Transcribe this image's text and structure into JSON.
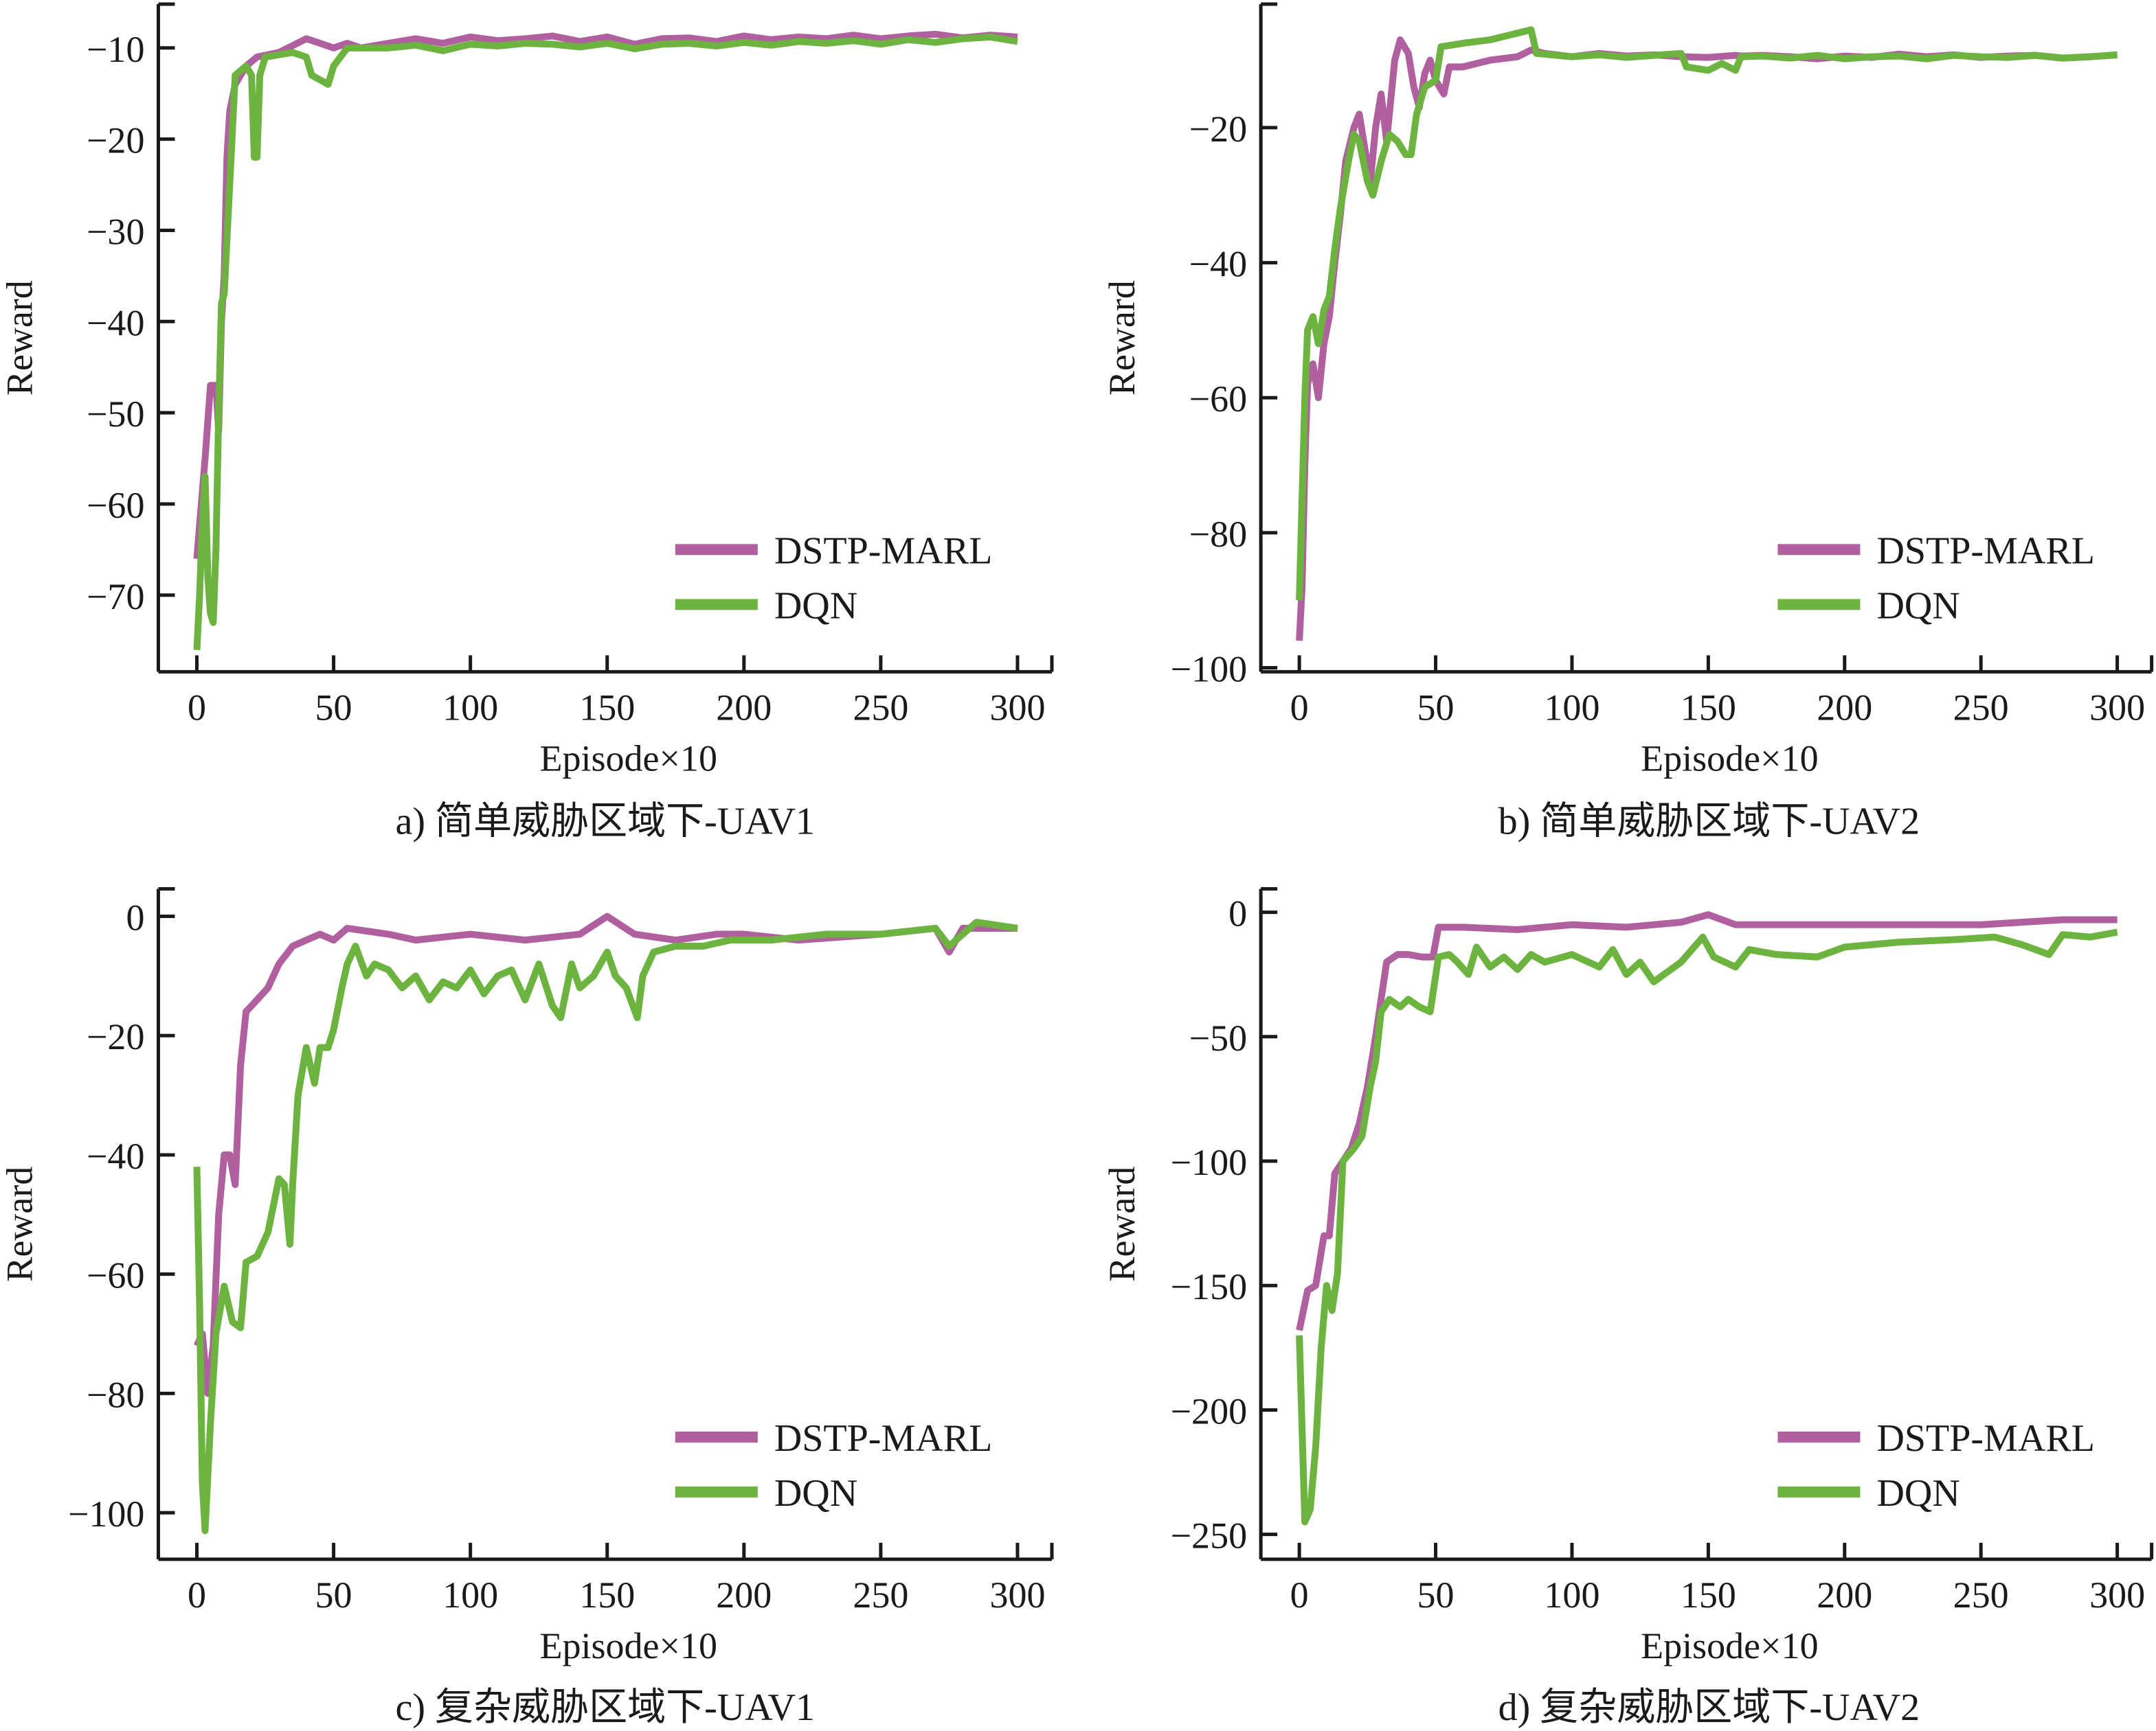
{
  "colors": {
    "dstp": "#b0609f",
    "dqn": "#6db33f",
    "axis": "#1a1a1a"
  },
  "chart_data": [
    {
      "type": "line",
      "caption": "a) 简单威胁区域下-UAV1",
      "xlabel": "Episode×10",
      "ylabel": "Reward",
      "xlim": [
        0,
        300
      ],
      "ylim": [
        -78.4,
        -5.2
      ],
      "xticks": [
        0,
        50,
        100,
        150,
        200,
        250,
        300
      ],
      "xtick_labels": [
        "0",
        "50",
        "100",
        "150",
        "200",
        "250",
        "300"
      ],
      "yticks": [
        -10,
        -20,
        -30,
        -40,
        -50,
        -60,
        -70
      ],
      "ytick_labels": [
        "−10",
        "−20",
        "−30",
        "−40",
        "−50",
        "−60",
        "−70"
      ],
      "legend": [
        "DSTP-MARL",
        "DQN"
      ],
      "legend_position": "lower-right",
      "series": [
        {
          "name": "DSTP-MARL",
          "x": [
            0,
            3,
            5,
            7,
            8,
            9,
            10,
            11,
            12,
            14,
            18,
            22,
            30,
            40,
            45,
            50,
            55,
            60,
            70,
            80,
            90,
            100,
            110,
            120,
            130,
            140,
            150,
            160,
            170,
            180,
            190,
            200,
            210,
            220,
            230,
            240,
            250,
            260,
            270,
            280,
            290,
            300
          ],
          "y": [
            -66,
            -55,
            -47,
            -47,
            -52,
            -40,
            -35,
            -22,
            -17,
            -14,
            -12,
            -11,
            -10.5,
            -9,
            -9.5,
            -10,
            -9.5,
            -10,
            -9.5,
            -9,
            -9.5,
            -8.8,
            -9.2,
            -9,
            -8.7,
            -9.3,
            -8.8,
            -9.6,
            -9,
            -8.9,
            -9.3,
            -8.7,
            -9.1,
            -8.8,
            -9,
            -8.6,
            -9,
            -8.7,
            -8.5,
            -8.9,
            -8.6,
            -8.8
          ]
        },
        {
          "name": "DQN",
          "x": [
            0,
            1,
            2,
            3,
            4,
            5,
            6,
            7,
            8,
            9,
            10,
            12,
            14,
            18,
            20,
            21,
            22,
            23,
            25,
            35,
            40,
            42,
            45,
            48,
            50,
            55,
            70,
            80,
            90,
            100,
            110,
            120,
            130,
            140,
            150,
            160,
            170,
            180,
            190,
            200,
            210,
            220,
            230,
            240,
            250,
            260,
            270,
            280,
            290,
            300
          ],
          "y": [
            -76,
            -70,
            -62,
            -57,
            -68,
            -72,
            -73,
            -65,
            -50,
            -38,
            -37,
            -25,
            -13,
            -12,
            -13,
            -22,
            -22,
            -13,
            -11,
            -10.5,
            -11,
            -13,
            -13.5,
            -14,
            -12,
            -10,
            -10,
            -9.7,
            -10.3,
            -9.6,
            -9.8,
            -9.5,
            -9.6,
            -9.9,
            -9.5,
            -10.1,
            -9.6,
            -9.5,
            -9.8,
            -9.4,
            -9.7,
            -9.3,
            -9.5,
            -9.2,
            -9.6,
            -9.1,
            -9.4,
            -9,
            -8.8,
            -9.3
          ]
        }
      ]
    },
    {
      "type": "line",
      "caption": "b) 简单威胁区域下-UAV2",
      "xlabel": "Episode×10",
      "ylabel": "Reward",
      "xlim": [
        0,
        300
      ],
      "ylim": [
        -100.6,
        -1.7
      ],
      "xticks": [
        0,
        50,
        100,
        150,
        200,
        250,
        300
      ],
      "xtick_labels": [
        "0",
        "50",
        "100",
        "150",
        "200",
        "250",
        "300"
      ],
      "yticks": [
        -20,
        -40,
        -60,
        -80,
        -100
      ],
      "ytick_labels": [
        "−20",
        "−40",
        "−60",
        "−80",
        "−100"
      ],
      "legend": [
        "DSTP-MARL",
        "DQN"
      ],
      "legend_position": "lower-right",
      "series": [
        {
          "name": "DSTP-MARL",
          "x": [
            0,
            1,
            2,
            3,
            5,
            7,
            9,
            11,
            13,
            15,
            17,
            20,
            22,
            24,
            26,
            28,
            30,
            32,
            35,
            37,
            40,
            42,
            44,
            46,
            48,
            50,
            53,
            55,
            60,
            70,
            80,
            85,
            90,
            100,
            110,
            120,
            130,
            140,
            150,
            160,
            162,
            170,
            180,
            190,
            200,
            210,
            220,
            230,
            240,
            250,
            260,
            270,
            280,
            290,
            300
          ],
          "y": [
            -96,
            -88,
            -70,
            -58,
            -55,
            -60,
            -52,
            -48,
            -40,
            -33,
            -25,
            -20,
            -18,
            -23,
            -28,
            -20,
            -15,
            -22,
            -10,
            -7,
            -9,
            -14,
            -17,
            -12,
            -10,
            -13,
            -15,
            -11,
            -11,
            -10,
            -9.5,
            -8.5,
            -9,
            -9.5,
            -9,
            -9.4,
            -9.2,
            -9.5,
            -9.6,
            -9.3,
            -9.4,
            -9.3,
            -9.5,
            -9.8,
            -9.4,
            -9.6,
            -9.1,
            -9.5,
            -9.2,
            -9.6,
            -9.4,
            -9.3,
            -9.7,
            -9.5,
            -9.2
          ]
        },
        {
          "name": "DQN",
          "x": [
            0,
            1,
            2,
            3,
            5,
            7,
            9,
            11,
            13,
            15,
            18,
            20,
            22,
            25,
            27,
            30,
            33,
            36,
            39,
            41,
            43,
            46,
            50,
            52,
            60,
            70,
            80,
            85,
            87,
            100,
            110,
            120,
            130,
            140,
            142,
            150,
            155,
            160,
            162,
            170,
            180,
            190,
            200,
            210,
            220,
            230,
            240,
            250,
            260,
            270,
            280,
            290,
            300
          ],
          "y": [
            -90,
            -75,
            -60,
            -50,
            -48,
            -52,
            -47,
            -45,
            -38,
            -32,
            -25,
            -21,
            -22,
            -28,
            -30,
            -25,
            -21,
            -22,
            -24,
            -24,
            -18,
            -14,
            -13,
            -8,
            -7.5,
            -7,
            -6,
            -5.5,
            -9,
            -9.5,
            -9.2,
            -9.6,
            -9.3,
            -9,
            -11,
            -11.5,
            -10.5,
            -11.5,
            -9.5,
            -9.4,
            -9.7,
            -9.3,
            -9.8,
            -9.5,
            -9.4,
            -9.8,
            -9.3,
            -9.5,
            -9.6,
            -9.3,
            -9.7,
            -9.5,
            -9.2
          ]
        }
      ]
    },
    {
      "type": "line",
      "caption": "c) 复杂威胁区域下-UAV1",
      "xlabel": "Episode×10",
      "ylabel": "Reward",
      "xlim": [
        0,
        300
      ],
      "ylim": [
        -107.8,
        4.6
      ],
      "xticks": [
        0,
        50,
        100,
        150,
        200,
        250,
        300
      ],
      "xtick_labels": [
        "0",
        "50",
        "100",
        "150",
        "200",
        "250",
        "300"
      ],
      "yticks": [
        0,
        -20,
        -40,
        -60,
        -80,
        -100
      ],
      "ytick_labels": [
        "0",
        "−20",
        "−40",
        "−60",
        "−80",
        "−100"
      ],
      "legend": [
        "DSTP-MARL",
        "DQN"
      ],
      "legend_position": "lower-right",
      "series": [
        {
          "name": "DSTP-MARL",
          "x": [
            0,
            2,
            4,
            6,
            8,
            10,
            12,
            14,
            16,
            18,
            22,
            26,
            30,
            35,
            40,
            45,
            50,
            55,
            70,
            80,
            100,
            120,
            130,
            140,
            150,
            160,
            175,
            190,
            200,
            220,
            250,
            270,
            275,
            280,
            300
          ],
          "y": [
            -72,
            -70,
            -80,
            -72,
            -50,
            -40,
            -40,
            -45,
            -25,
            -16,
            -14,
            -12,
            -8,
            -5,
            -4,
            -3,
            -4,
            -2,
            -3,
            -4,
            -3,
            -4,
            -3.5,
            -3,
            0,
            -3,
            -4,
            -3,
            -3,
            -4,
            -3,
            -2,
            -6,
            -2,
            -2
          ]
        },
        {
          "name": "DQN",
          "x": [
            0,
            1,
            2,
            3,
            5,
            7,
            10,
            13,
            16,
            18,
            22,
            26,
            30,
            32,
            34,
            35,
            37,
            40,
            43,
            45,
            48,
            50,
            53,
            55,
            58,
            62,
            65,
            70,
            75,
            80,
            85,
            90,
            95,
            100,
            105,
            110,
            115,
            120,
            125,
            130,
            133,
            137,
            140,
            145,
            150,
            153,
            157,
            161,
            163,
            167,
            175,
            185,
            195,
            210,
            230,
            250,
            270,
            275,
            285,
            300
          ],
          "y": [
            -42,
            -65,
            -95,
            -103,
            -85,
            -70,
            -62,
            -68,
            -69,
            -58,
            -57,
            -53,
            -44,
            -45,
            -55,
            -45,
            -30,
            -22,
            -28,
            -22,
            -22,
            -19,
            -12,
            -8,
            -5,
            -10,
            -8,
            -9,
            -12,
            -10,
            -14,
            -11,
            -12,
            -9,
            -13,
            -10,
            -9,
            -14,
            -8,
            -15,
            -17,
            -8,
            -12,
            -10,
            -6,
            -10,
            -12,
            -17,
            -10,
            -6,
            -5,
            -5,
            -4,
            -4,
            -3,
            -3,
            -2,
            -5,
            -1,
            -2
          ]
        }
      ]
    },
    {
      "type": "line",
      "caption": "d) 复杂威胁区域下-UAV2",
      "xlabel": "Episode×10",
      "ylabel": "Reward",
      "xlim": [
        0,
        300
      ],
      "ylim": [
        -260,
        9.4
      ],
      "xticks": [
        0,
        50,
        100,
        150,
        200,
        250,
        300
      ],
      "xtick_labels": [
        "0",
        "50",
        "100",
        "150",
        "200",
        "250",
        "300"
      ],
      "yticks": [
        0,
        -50,
        -100,
        -150,
        -200,
        -250
      ],
      "ytick_labels": [
        "0",
        "−50",
        "−100",
        "−150",
        "−200",
        "−250"
      ],
      "legend": [
        "DSTP-MARL",
        "DQN"
      ],
      "legend_position": "lower-right",
      "series": [
        {
          "name": "DSTP-MARL",
          "x": [
            0,
            3,
            6,
            9,
            11,
            13,
            16,
            19,
            22,
            25,
            28,
            30,
            32,
            36,
            40,
            45,
            49,
            51,
            60,
            80,
            100,
            120,
            140,
            150,
            160,
            200,
            250,
            280,
            300
          ],
          "y": [
            -168,
            -152,
            -150,
            -130,
            -130,
            -105,
            -100,
            -95,
            -85,
            -70,
            -50,
            -35,
            -20,
            -17,
            -17,
            -18,
            -18,
            -6,
            -6,
            -7,
            -5,
            -6,
            -4,
            -1,
            -5,
            -5,
            -5,
            -3,
            -3
          ]
        },
        {
          "name": "DQN",
          "x": [
            0,
            2,
            4,
            6,
            8,
            10,
            12,
            14,
            16,
            20,
            23,
            26,
            28,
            30,
            33,
            37,
            40,
            44,
            48,
            51,
            55,
            58,
            62,
            65,
            70,
            75,
            80,
            85,
            90,
            100,
            110,
            115,
            120,
            125,
            130,
            140,
            148,
            152,
            160,
            165,
            175,
            190,
            200,
            220,
            240,
            255,
            265,
            275,
            280,
            290,
            300
          ],
          "y": [
            -170,
            -245,
            -240,
            -215,
            -175,
            -150,
            -160,
            -145,
            -100,
            -95,
            -90,
            -70,
            -60,
            -40,
            -35,
            -38,
            -35,
            -38,
            -40,
            -18,
            -17,
            -20,
            -25,
            -14,
            -22,
            -18,
            -23,
            -17,
            -20,
            -17,
            -22,
            -15,
            -25,
            -20,
            -28,
            -20,
            -10,
            -18,
            -22,
            -15,
            -17,
            -18,
            -14,
            -12,
            -11,
            -10,
            -13,
            -17,
            -9,
            -10,
            -8
          ]
        }
      ]
    }
  ]
}
